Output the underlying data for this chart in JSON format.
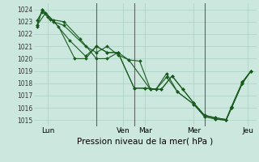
{
  "xlabel": "Pression niveau de la mer( hPa )",
  "bg_color": "#cce8de",
  "grid_color": "#aacfc4",
  "line_color": "#1a5c20",
  "vline_color": "#444444",
  "ylim": [
    1014.5,
    1024.5
  ],
  "xlim": [
    -0.3,
    20.3
  ],
  "xtick_positions": [
    1.0,
    8.0,
    10.0,
    14.5,
    19.5
  ],
  "xtick_labels": [
    "Lun",
    "Ven",
    "Mar",
    "Mer",
    "Jeu"
  ],
  "vline_positions": [
    5.5,
    9.0,
    15.5
  ],
  "ytick_values": [
    1015,
    1016,
    1017,
    1018,
    1019,
    1020,
    1021,
    1022,
    1023,
    1024
  ],
  "series": [
    {
      "x": [
        0,
        0.5,
        1.0,
        1.5,
        2.5,
        4.5,
        5.5,
        6.5,
        7.5,
        8.5,
        10.5,
        11.0,
        12.0,
        13.0,
        14.5,
        15.5,
        16.5,
        17.5,
        18.0,
        19.0,
        19.8
      ],
      "y": [
        1022.6,
        1024.0,
        1023.4,
        1023.0,
        1022.7,
        1021.0,
        1020.5,
        1021.0,
        1020.3,
        1019.9,
        1017.5,
        1017.5,
        1018.5,
        1017.3,
        1016.3,
        1015.3,
        1015.1,
        1015.0,
        1016.0,
        1018.0,
        1019.0
      ]
    },
    {
      "x": [
        0,
        0.5,
        1.2,
        2.5,
        4.0,
        5.5,
        6.5,
        7.5,
        8.5,
        9.5,
        10.5,
        11.0,
        12.0,
        13.0,
        14.5,
        15.5,
        16.5,
        17.5,
        18.0,
        19.0,
        19.8
      ],
      "y": [
        1023.1,
        1023.8,
        1023.2,
        1023.0,
        1021.6,
        1020.0,
        1020.0,
        1020.5,
        1019.9,
        1019.8,
        1017.5,
        1017.5,
        1018.8,
        1017.3,
        1016.3,
        1015.3,
        1015.1,
        1015.0,
        1016.0,
        1018.0,
        1019.0
      ]
    },
    {
      "x": [
        0,
        0.5,
        1.5,
        3.0,
        4.5,
        5.5,
        6.5,
        7.5,
        9.0,
        10.0,
        11.5,
        12.5,
        13.5,
        14.5,
        15.5,
        16.5,
        17.5,
        18.0,
        19.0,
        19.8
      ],
      "y": [
        1022.7,
        1024.0,
        1023.1,
        1021.5,
        1020.2,
        1021.0,
        1020.5,
        1020.5,
        1017.6,
        1017.6,
        1017.5,
        1018.6,
        1017.5,
        1016.4,
        1015.4,
        1015.2,
        1015.05,
        1016.1,
        1018.1,
        1019.0
      ]
    },
    {
      "x": [
        0,
        0.8,
        2.0,
        3.5,
        4.5,
        5.5,
        6.5,
        7.5,
        9.0,
        10.0,
        11.5,
        12.5,
        13.5,
        14.5,
        15.5,
        16.5,
        17.5,
        18.0,
        19.0,
        19.8
      ],
      "y": [
        1022.7,
        1023.7,
        1022.6,
        1020.0,
        1020.0,
        1021.0,
        1020.5,
        1020.5,
        1017.6,
        1017.6,
        1017.5,
        1018.6,
        1017.5,
        1016.4,
        1015.4,
        1015.2,
        1015.05,
        1016.1,
        1018.1,
        1019.0
      ]
    }
  ]
}
